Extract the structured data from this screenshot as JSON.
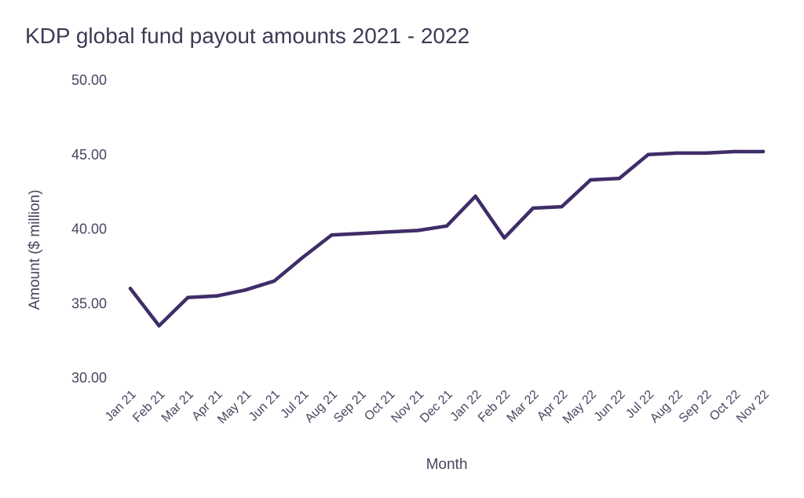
{
  "chart_data": {
    "type": "line",
    "title": "KDP global fund payout amounts 2021 - 2022",
    "xlabel": "Month",
    "ylabel": "Amount ($ million)",
    "ylim": [
      30,
      50
    ],
    "yticks": [
      "30.00",
      "35.00",
      "40.00",
      "45.00",
      "50.00"
    ],
    "grid": false,
    "line_color": "#3f2d68",
    "categories": [
      "Jan 21",
      "Feb 21",
      "Mar 21",
      "Apr 21",
      "May 21",
      "Jun 21",
      "Jul 21",
      "Aug 21",
      "Sep 21",
      "Oct 21",
      "Nov 21",
      "Dec 21",
      "Jan 22",
      "Feb 22",
      "Mar 22",
      "Apr 22",
      "May 22",
      "Jun 22",
      "Jul 22",
      "Aug 22",
      "Sep 22",
      "Oct 22",
      "Nov 22"
    ],
    "values": [
      36.0,
      33.5,
      35.4,
      35.5,
      35.9,
      36.5,
      38.1,
      39.6,
      39.7,
      39.8,
      39.9,
      40.2,
      42.2,
      39.4,
      41.4,
      41.5,
      43.3,
      43.4,
      45.0,
      45.1,
      45.1,
      45.2,
      45.2
    ]
  }
}
